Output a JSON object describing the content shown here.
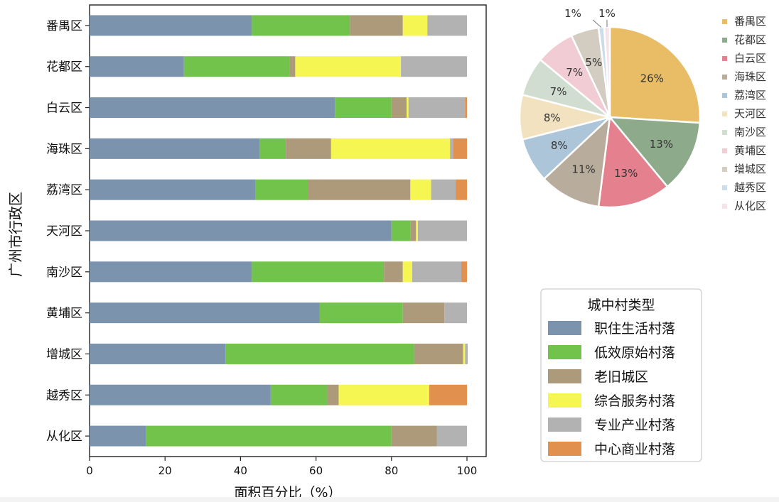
{
  "chart_data": [
    {
      "type": "bar",
      "orientation": "horizontal",
      "stacked": true,
      "ylabel": "广州市行政区",
      "xlabel": "面积百分比（%）",
      "xlim": [
        0,
        100
      ],
      "xticks": [
        "0",
        "20",
        "40",
        "60",
        "80",
        "100"
      ],
      "categories": [
        "番禺区",
        "花都区",
        "白云区",
        "海珠区",
        "荔湾区",
        "天河区",
        "南沙区",
        "黄埔区",
        "增城区",
        "越秀区",
        "从化区"
      ],
      "series": [
        {
          "name": "职住生活村落",
          "color": "#7b93ad",
          "values": [
            43,
            25,
            65,
            45,
            44,
            80,
            43,
            61,
            36,
            48,
            15
          ]
        },
        {
          "name": "低效原始村落",
          "color": "#72c34b",
          "values": [
            26,
            28,
            15,
            7,
            14,
            5,
            35,
            22,
            50,
            15,
            65
          ]
        },
        {
          "name": "老旧城区",
          "color": "#ad9a7a",
          "values": [
            14,
            1.5,
            4,
            12,
            27,
            1.5,
            5,
            11,
            13,
            3,
            12
          ]
        },
        {
          "name": "综合服务村落",
          "color": "#f6f653",
          "values": [
            6.5,
            28,
            0.5,
            31.5,
            5.5,
            0.5,
            2.5,
            0,
            0.5,
            24,
            0
          ]
        },
        {
          "name": "专业产业村落",
          "color": "#b2b2b2",
          "values": [
            10.5,
            17.5,
            15,
            0.8,
            6.5,
            13,
            13,
            6,
            0.7,
            0,
            8
          ]
        },
        {
          "name": "中心商业村落",
          "color": "#e2904d",
          "values": [
            0,
            0,
            0.5,
            3.7,
            3,
            0,
            1.5,
            0,
            0,
            10,
            0
          ]
        }
      ],
      "legend": {
        "title": "城中村类型",
        "placement": "lower-right"
      }
    },
    {
      "type": "pie",
      "labels": [
        "番禺区",
        "花都区",
        "白云区",
        "海珠区",
        "荔湾区",
        "天河区",
        "南沙区",
        "黄埔区",
        "增城区",
        "越秀区",
        "从化区"
      ],
      "values": [
        26,
        13,
        13,
        11,
        8,
        8,
        7,
        7,
        5,
        1,
        1
      ],
      "value_labels": [
        "26%",
        "13%",
        "13%",
        "11%",
        "8%",
        "8%",
        "7%",
        "7%",
        "5%",
        "1%",
        "1%"
      ],
      "colors": [
        "#e8bd66",
        "#8daa8b",
        "#e5818f",
        "#b8ad9c",
        "#adc5d8",
        "#f3e2c0",
        "#d2ddd2",
        "#f2ccd4",
        "#d3ccc0",
        "#cddcea",
        "#f5e3e8"
      ],
      "legend_placement": "right"
    }
  ]
}
